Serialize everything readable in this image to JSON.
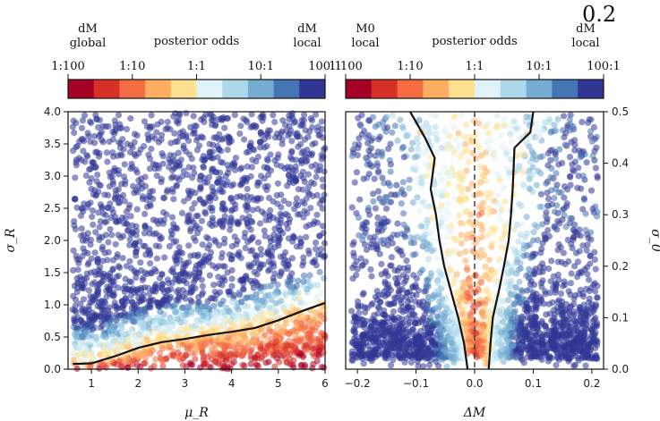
{
  "corner_label": "0.2",
  "palette": [
    "#a50026",
    "#d73027",
    "#f46d43",
    "#fdae61",
    "#fee090",
    "#e0f3f8",
    "#abd9e9",
    "#74add1",
    "#4575b4",
    "#313695"
  ],
  "colorbars": [
    {
      "left_label_line1": "dM",
      "left_label_line2": "global",
      "center_label": "posterior odds",
      "right_label_line1": "dM",
      "right_label_line2": "local",
      "tick_labels": [
        "1:100",
        "1:10",
        "1:1",
        "10:1",
        "100:1"
      ]
    },
    {
      "left_label_line1": "M0",
      "left_label_line2": "local",
      "center_label": "posterior odds",
      "right_label_line1": "dM",
      "right_label_line2": "local",
      "tick_labels": [
        "1:100",
        "1:10",
        "1:1",
        "10:1",
        "100:1"
      ]
    }
  ],
  "chart_data": [
    {
      "type": "scatter",
      "xlabel": "μ_R",
      "ylabel": "σ_R",
      "xlim": [
        0.5,
        6.0
      ],
      "ylim": [
        0.0,
        4.0
      ],
      "xticks": [
        1,
        2,
        3,
        4,
        5,
        6
      ],
      "yticks": [
        0.0,
        0.5,
        1.0,
        1.5,
        2.0,
        2.5,
        3.0,
        3.5,
        4.0
      ],
      "xtick_labels": [
        "1",
        "2",
        "3",
        "4",
        "5",
        "6"
      ],
      "ytick_labels": [
        "0.0",
        "0.5",
        "1.0",
        "1.5",
        "2.0",
        "2.5",
        "3.0",
        "3.5",
        "4.0"
      ],
      "description_points": "dense cloud of samples colored by posterior odds; blue (dM local favored) above the curve, red/orange (dM global favored) near σ_R ≈ 0",
      "boundary_curve": {
        "name": "1:1 contour",
        "x": [
          0.6,
          1.0,
          1.5,
          2.0,
          2.5,
          3.0,
          3.5,
          4.0,
          4.5,
          5.0,
          5.5,
          6.0
        ],
        "y": [
          0.08,
          0.09,
          0.2,
          0.33,
          0.42,
          0.47,
          0.53,
          0.58,
          0.64,
          0.76,
          0.9,
          1.03
        ]
      }
    },
    {
      "type": "scatter",
      "xlabel": "ΔM",
      "ylabel": "σ_0",
      "xlim": [
        -0.22,
        0.22
      ],
      "ylim": [
        0.0,
        0.5
      ],
      "xticks": [
        -0.2,
        -0.1,
        0.0,
        0.1,
        0.2
      ],
      "yticks": [
        0.0,
        0.1,
        0.2,
        0.3,
        0.4,
        0.5
      ],
      "xtick_labels": [
        "−0.2",
        "−0.1",
        "0.0",
        "0.1",
        "0.2"
      ],
      "ytick_labels": [
        "0.0",
        "0.1",
        "0.2",
        "0.3",
        "0.4",
        "0.5"
      ],
      "description_points": "samples colored by posterior odds; red/orange (M0 local favored) in a V-shaped band around ΔM = 0, blue (dM local favored) on both sides",
      "center_line": {
        "x": 0.0,
        "style": "dashed"
      },
      "left_curve": {
        "x": [
          -0.012,
          -0.018,
          -0.028,
          -0.04,
          -0.052,
          -0.06,
          -0.066,
          -0.075,
          -0.068,
          -0.085,
          -0.11
        ],
        "y": [
          0.0,
          0.05,
          0.1,
          0.15,
          0.2,
          0.25,
          0.3,
          0.35,
          0.41,
          0.45,
          0.5
        ]
      },
      "right_curve": {
        "x": [
          0.024,
          0.027,
          0.031,
          0.041,
          0.05,
          0.058,
          0.062,
          0.065,
          0.068,
          0.095,
          0.1
        ],
        "y": [
          0.0,
          0.05,
          0.1,
          0.15,
          0.2,
          0.25,
          0.3,
          0.35,
          0.43,
          0.46,
          0.5
        ]
      }
    }
  ]
}
